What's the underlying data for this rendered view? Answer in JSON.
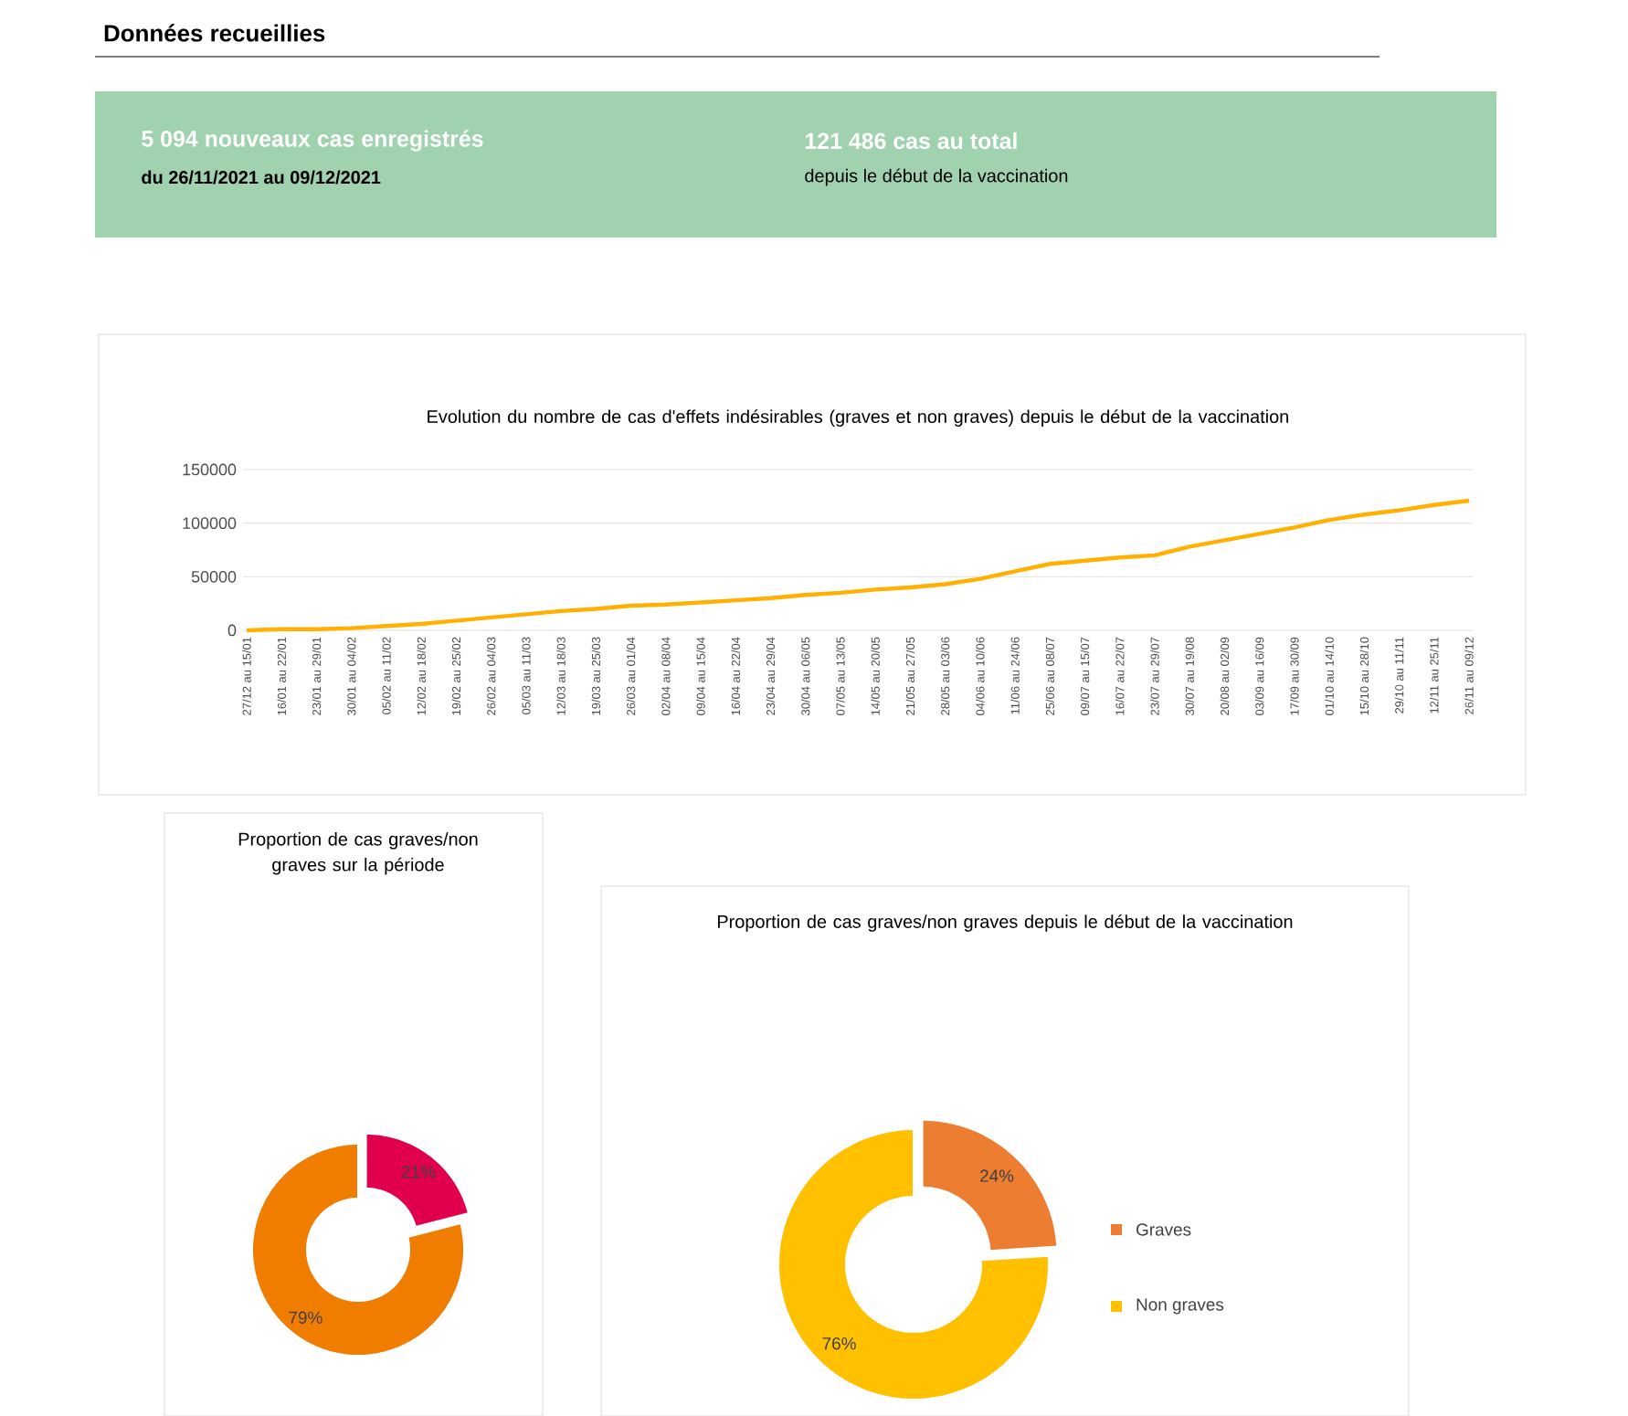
{
  "chart_data": [
    {
      "type": "other",
      "title": "Données recueillies",
      "annotations": [
        "5 094 nouveaux cas enregistrés",
        "du 26/11/2021 au 09/12/2021",
        "121 486 cas au total",
        "depuis le début de la vaccination"
      ]
    },
    {
      "type": "line",
      "title": "Evolution du nombre de cas d'effets indésirables (graves et non graves) depuis le début de la vaccination",
      "categories": [
        "27/12 au 15/01",
        "16/01 au 22/01",
        "23/01 au 29/01",
        "30/01 au 04/02",
        "05/02 au 11/02",
        "12/02 au 18/02",
        "19/02 au 25/02",
        "26/02 au 04/03",
        "05/03 au 11/03",
        "12/03 au 18/03",
        "19/03 au 25/03",
        "26/03 au 01/04",
        "02/04 au 08/04",
        "09/04 au 15/04",
        "16/04 au 22/04",
        "23/04 au 29/04",
        "30/04 au 06/05",
        "07/05 au 13/05",
        "14/05 au 20/05",
        "21/05 au 27/05",
        "28/05 au 03/06",
        "04/06 au 10/06",
        "11/06 au 24/06",
        "25/06 au 08/07",
        "09/07 au 15/07",
        "16/07 au 22/07",
        "23/07 au 29/07",
        "30/07 au 19/08",
        "20/08 au 02/09",
        "03/09 au 16/09",
        "17/09 au 30/09",
        "01/10 au 14/10",
        "15/10 au 28/10",
        "29/10 au 11/11",
        "12/11 au 25/11",
        "26/11 au 09/12"
      ],
      "values": [
        0,
        1000,
        1000,
        2000,
        4000,
        6000,
        9000,
        12000,
        15000,
        18000,
        20000,
        23000,
        24000,
        26000,
        28000,
        30000,
        33000,
        35000,
        38000,
        40000,
        43000,
        48000,
        55000,
        62000,
        65000,
        68000,
        70000,
        78000,
        84000,
        90000,
        96000,
        103000,
        108000,
        112000,
        117000,
        121000
      ],
      "color": "#ffb000",
      "ylim": [
        0,
        150000
      ],
      "yticks": [
        0,
        50000,
        100000,
        150000
      ],
      "grid": "y",
      "legend": false,
      "marker": "none",
      "line_style": "solid"
    },
    {
      "type": "donut",
      "title": "Proportion de cas graves/non graves sur la période",
      "categories": [
        null,
        null
      ],
      "values": [
        21,
        79
      ],
      "colors": [
        "#e0004d",
        "#f07c00"
      ],
      "value_labels": [
        "21%",
        "79%"
      ],
      "legend": false
    },
    {
      "type": "donut",
      "title": "Proportion de cas graves/non graves depuis le début de la vaccination",
      "categories": [
        "Graves",
        "Non graves"
      ],
      "values": [
        24,
        76
      ],
      "colors": [
        "#ed7d31",
        "#ffc000"
      ],
      "value_labels": [
        "24%",
        "76%"
      ],
      "legend": "right"
    }
  ]
}
